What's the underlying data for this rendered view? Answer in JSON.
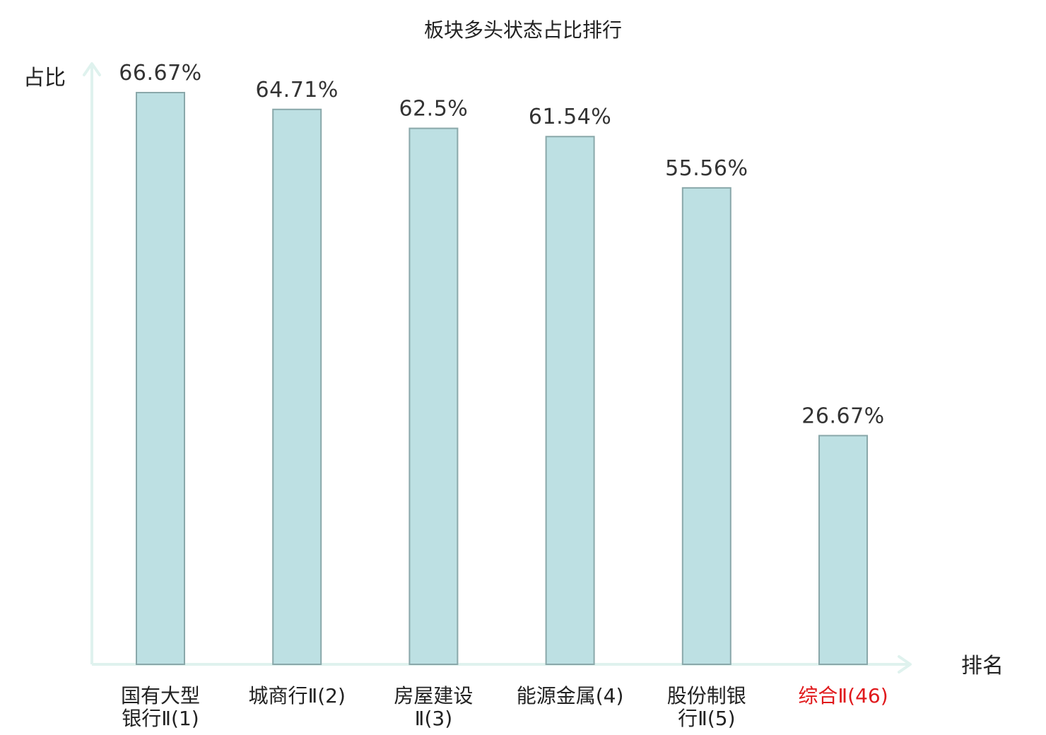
{
  "chart_data": {
    "type": "bar",
    "title": "板块多头状态占比排行",
    "xlabel": "排名",
    "ylabel": "占比",
    "categories": [
      [
        "国有大型",
        "银行Ⅱ(1)"
      ],
      [
        "城商行Ⅱ(2)"
      ],
      [
        "房屋建设",
        "Ⅱ(3)"
      ],
      [
        "能源金属(4)"
      ],
      [
        "股份制银",
        "行Ⅱ(5)"
      ],
      [
        "综合Ⅱ(46)"
      ]
    ],
    "values": [
      66.67,
      64.71,
      62.5,
      61.54,
      55.56,
      26.67
    ],
    "value_labels": [
      "66.67%",
      "64.71%",
      "62.5%",
      "61.54%",
      "55.56%",
      "26.67%"
    ],
    "ylim": [
      0,
      66.67
    ],
    "grid": false,
    "highlight_index": 5,
    "colors": {
      "bar_fill": "#bde0e3",
      "bar_stroke": "#8aa8aa",
      "axis": "#dff2ee",
      "text": "#222222",
      "value_text": "#333333",
      "highlight_text": "#e0191c"
    }
  }
}
